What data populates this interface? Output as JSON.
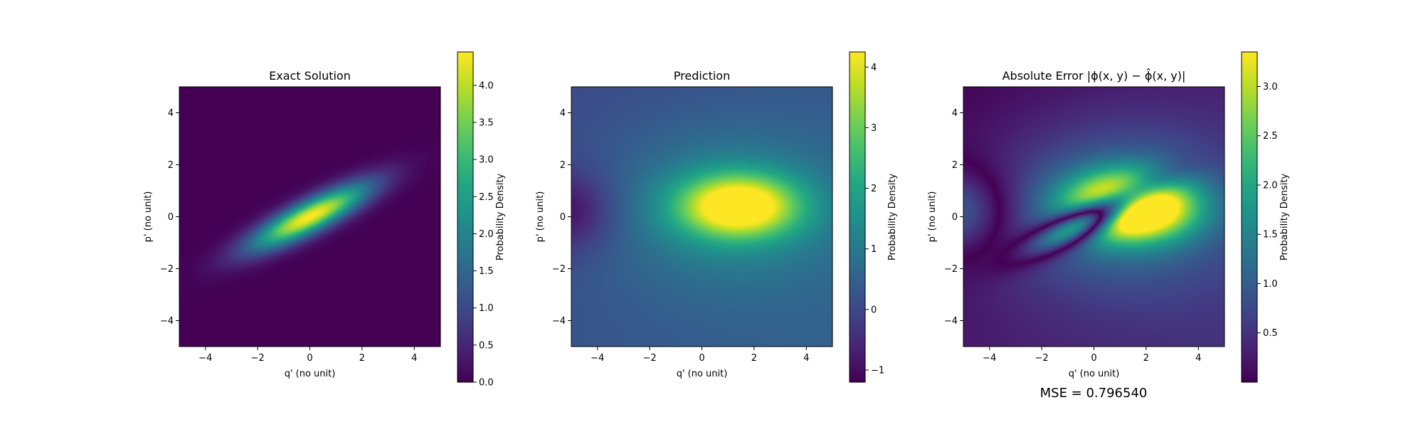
{
  "chart_data": [
    {
      "type": "heatmap",
      "title": "Exact Solution",
      "xlabel": "q' (no unit)",
      "ylabel": "p' (no unit)",
      "xlim": [
        -5,
        5
      ],
      "ylim": [
        -5,
        5
      ],
      "xticks": [
        -4,
        -2,
        0,
        2,
        4
      ],
      "yticks": [
        -4,
        -2,
        0,
        2,
        4
      ],
      "colormap": "viridis",
      "field": {
        "kind": "rotated_gaussian",
        "peak": 4.45,
        "center": [
          0,
          0
        ],
        "angle_deg": 27,
        "sigma_major": 1.75,
        "sigma_minor": 0.42
      },
      "colorbar": {
        "label": "Probability Density",
        "range": [
          0,
          4.45
        ],
        "ticks": [
          "0.0",
          "0.5",
          "1.0",
          "1.5",
          "2.0",
          "2.5",
          "3.0",
          "3.5",
          "4.0"
        ]
      }
    },
    {
      "type": "heatmap",
      "title": "Prediction",
      "xlabel": "q' (no unit)",
      "ylabel": "p' (no unit)",
      "xlim": [
        -5,
        5
      ],
      "ylim": [
        -5,
        5
      ],
      "xticks": [
        -4,
        -2,
        0,
        2,
        4
      ],
      "yticks": [
        -4,
        -2,
        0,
        2,
        4
      ],
      "colormap": "viridis",
      "field": {
        "kind": "prediction_blob",
        "background": 0.25,
        "peak": 4.2,
        "center": [
          1.4,
          0.4
        ],
        "sigma_x": 1.6,
        "sigma_y": 0.85,
        "low_value": -1.2,
        "low_center": [
          -5.2,
          0.2
        ]
      },
      "colorbar": {
        "label": "Probability Density",
        "range": [
          -1.2,
          4.25
        ],
        "ticks": [
          "−1",
          "0",
          "1",
          "2",
          "3",
          "4"
        ]
      }
    },
    {
      "type": "heatmap",
      "title": "Absolute Error |ϕ(x, y) − ϕ̂(x, y)|",
      "xlabel": "q' (no unit)",
      "ylabel": "p' (no unit)",
      "xlim": [
        -5,
        5
      ],
      "ylim": [
        -5,
        5
      ],
      "xticks": [
        -4,
        -2,
        0,
        2,
        4
      ],
      "yticks": [
        -4,
        -2,
        0,
        2,
        4
      ],
      "colormap": "viridis",
      "field": {
        "kind": "absolute_error"
      },
      "colorbar": {
        "label": "Probability Density",
        "range": [
          0,
          3.35
        ],
        "ticks": [
          "0.5",
          "1.0",
          "1.5",
          "2.0",
          "2.5",
          "3.0"
        ]
      }
    }
  ],
  "annotation": {
    "mse_text": "MSE = 0.796540"
  }
}
